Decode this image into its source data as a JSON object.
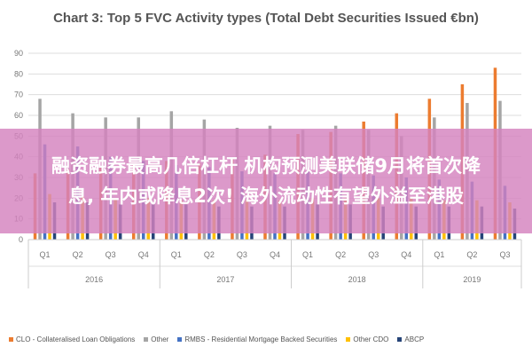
{
  "overlay": {
    "line1": "融资融券最高几倍杠杆 机构预测美联储9月将首次降",
    "line2": "息, 年内或降息2次! 海外流动性有望外溢至港股"
  },
  "chart_data": {
    "type": "bar",
    "title": "Chart 3: Top 5 FVC Activity types (Total Debt Securities Issued €bn)",
    "xlabel": "",
    "ylabel": "",
    "ylim": [
      0,
      90
    ],
    "yticks": [
      "0",
      "10",
      "20",
      "30",
      "40",
      "50",
      "60",
      "70",
      "80",
      "90"
    ],
    "grid": true,
    "legend_position": "bottom",
    "categories": [
      "Q1",
      "Q2",
      "Q3",
      "Q4",
      "Q1",
      "Q2",
      "Q3",
      "Q4",
      "Q1",
      "Q2",
      "Q3",
      "Q4",
      "Q1",
      "Q2",
      "Q3"
    ],
    "years": [
      {
        "label": "2016",
        "count": 4
      },
      {
        "label": "2017",
        "count": 4
      },
      {
        "label": "2018",
        "count": 4
      },
      {
        "label": "2019",
        "count": 3
      }
    ],
    "series": [
      {
        "name": "CLO - Collateralised Loan Obligations",
        "color": "#ec7c30",
        "values": [
          32,
          34,
          35,
          36,
          38,
          37,
          39,
          41,
          51,
          52,
          57,
          61,
          68,
          75,
          83
        ]
      },
      {
        "name": "Other",
        "color": "#a5a5a5",
        "values": [
          68,
          61,
          59,
          59,
          62,
          58,
          54,
          55,
          53,
          55,
          53,
          50,
          59,
          66,
          67
        ]
      },
      {
        "name": "RMBS - Residential Mortgage Backed Securities",
        "color": "#4472c4",
        "values": [
          46,
          45,
          40,
          38,
          36,
          35,
          33,
          32,
          33,
          32,
          31,
          30,
          29,
          28,
          26
        ]
      },
      {
        "name": "Other CDO",
        "color": "#ffc000",
        "values": [
          22,
          21,
          20,
          20,
          19,
          19,
          19,
          19,
          20,
          20,
          20,
          20,
          19,
          19,
          18
        ]
      },
      {
        "name": "ABCP",
        "color": "#264478",
        "values": [
          18,
          18,
          17,
          17,
          17,
          16,
          16,
          16,
          17,
          17,
          16,
          16,
          16,
          16,
          15
        ]
      }
    ]
  }
}
